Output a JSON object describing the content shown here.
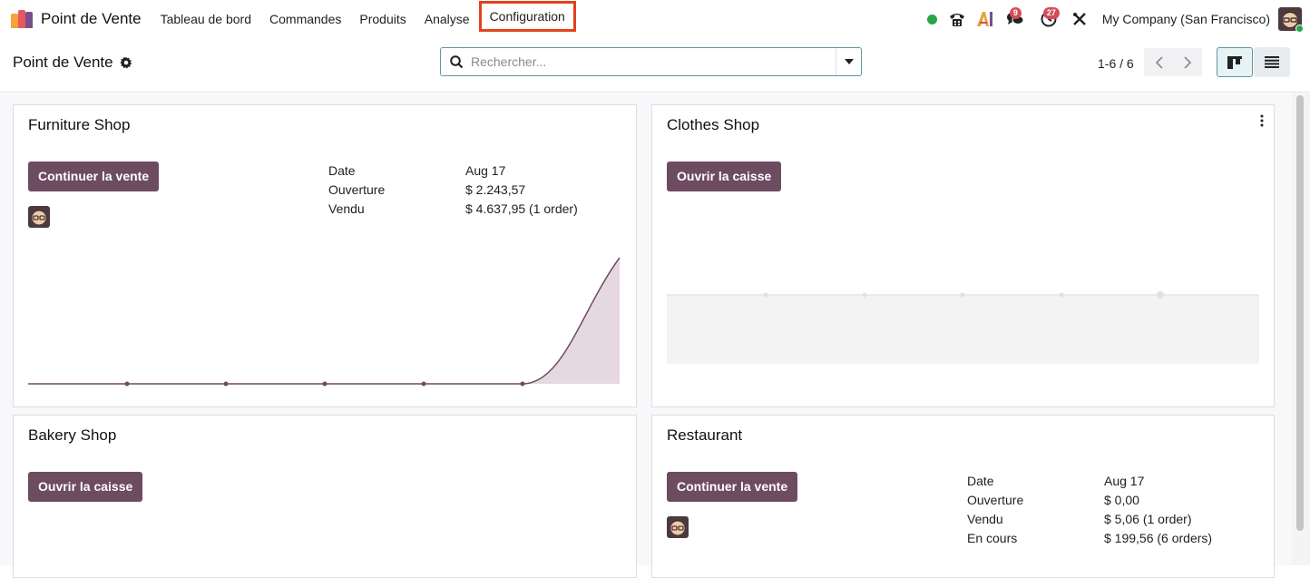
{
  "navbar": {
    "brand": "Point de Vente",
    "menu": [
      "Tableau de bord",
      "Commandes",
      "Produits",
      "Analyse",
      "Configuration"
    ],
    "highlighted_item": "Configuration",
    "messages_badge": "9",
    "activities_badge": "27",
    "company": "My Company (San Francisco)",
    "status_color": "#28a745"
  },
  "control": {
    "title": "Point de Vente",
    "search_placeholder": "Rechercher...",
    "pager": "1-6 / 6"
  },
  "cards": {
    "furniture": {
      "title": "Furniture Shop",
      "button": "Continuer la vente",
      "stats": [
        {
          "label": "Date",
          "value": "Aug 17"
        },
        {
          "label": "Ouverture",
          "value": "$ 2.243,57"
        },
        {
          "label": "Vendu",
          "value": "$ 4.637,95 (1 order)"
        }
      ]
    },
    "clothes": {
      "title": "Clothes Shop",
      "button": "Ouvrir la caisse"
    },
    "bakery": {
      "title": "Bakery Shop",
      "button": "Ouvrir la caisse"
    },
    "restaurant": {
      "title": "Restaurant",
      "button": "Continuer la vente",
      "stats": [
        {
          "label": "Date",
          "value": "Aug 17"
        },
        {
          "label": "Ouverture",
          "value": "$ 0,00"
        },
        {
          "label": "Vendu",
          "value": "$ 5,06 (1 order)"
        },
        {
          "label": "En cours",
          "value": "$ 199,56 (6 orders)"
        }
      ]
    }
  },
  "colors": {
    "primary": "#6d4c61",
    "highlight_border": "#e3411d",
    "badge": "#d44c59"
  }
}
